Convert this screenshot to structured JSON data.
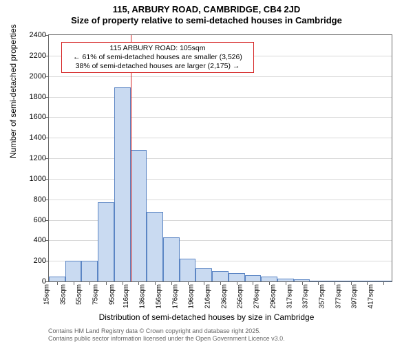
{
  "titles": {
    "line1": "115, ARBURY ROAD, CAMBRIDGE, CB4 2JD",
    "line2": "Size of property relative to semi-detached houses in Cambridge"
  },
  "chart": {
    "type": "histogram",
    "background_color": "#ffffff",
    "grid_color": "#d8d8d8",
    "axis_color": "#666666",
    "bar_fill": "#c9daf1",
    "bar_stroke": "#5b85c4",
    "bar_stroke_width": 1,
    "ylim": [
      0,
      2400
    ],
    "yticks": [
      0,
      200,
      400,
      600,
      800,
      1000,
      1200,
      1400,
      1600,
      1800,
      2000,
      2200,
      2400
    ],
    "x_labels": [
      "15sqm",
      "35sqm",
      "55sqm",
      "75sqm",
      "95sqm",
      "116sqm",
      "136sqm",
      "156sqm",
      "176sqm",
      "196sqm",
      "216sqm",
      "236sqm",
      "256sqm",
      "276sqm",
      "296sqm",
      "317sqm",
      "337sqm",
      "357sqm",
      "377sqm",
      "397sqm",
      "417sqm"
    ],
    "values": [
      50,
      200,
      200,
      770,
      1890,
      1280,
      680,
      430,
      220,
      130,
      100,
      80,
      60,
      50,
      30,
      20,
      10,
      0,
      0,
      0,
      0
    ],
    "y_axis_title": "Number of semi-detached properties",
    "x_axis_title": "Distribution of semi-detached houses by size in Cambridge",
    "title_fontsize": 13,
    "axis_title_fontsize": 12,
    "tick_fontsize": 11
  },
  "marker": {
    "bin_index": 4,
    "color": "#d42020",
    "line_width": 1
  },
  "annotation": {
    "border_color": "#d42020",
    "border_width": 1,
    "background": "#ffffff",
    "fontsize": 10.5,
    "lines": [
      "115 ARBURY ROAD: 105sqm",
      "← 61% of semi-detached houses are smaller (3,526)",
      "38% of semi-detached houses are larger (2,175) →"
    ]
  },
  "footer": {
    "line1": "Contains HM Land Registry data © Crown copyright and database right 2025.",
    "line2": "Contains public sector information licensed under the Open Government Licence v3.0.",
    "color": "#666666",
    "fontsize": 9
  }
}
